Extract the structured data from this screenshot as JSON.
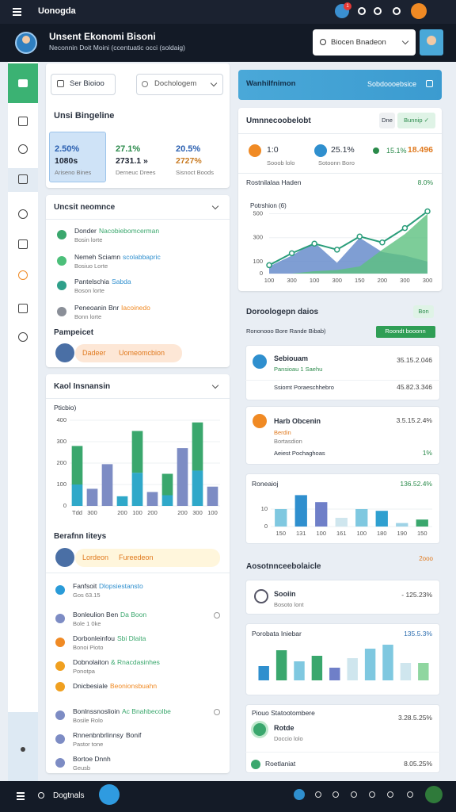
{
  "topbar": {
    "title": "Uonogda",
    "badge": "1"
  },
  "header": {
    "title": "Unsent Ekonomi Bisoni",
    "subtitle": "Neconnin Doit Moini (ccentuatic occi (soldaig)",
    "search": "Biocen Bnadeon"
  },
  "left": {
    "search": "Ser Bioioo",
    "dropdown": "Dochologem",
    "summary": {
      "title": "Unsi Bingeline",
      "cards": [
        {
          "change": "2.50%",
          "value": "1080s",
          "note": "Ariseno Bines"
        },
        {
          "change": "27.1%",
          "value": "2731.1 »",
          "note": "Derneuc Drees"
        },
        {
          "change": "20.5%",
          "value": "2727%",
          "note": "Sisnoct Boods"
        }
      ]
    },
    "activity": {
      "title": "Uncsit neomnce",
      "items": [
        {
          "title": "Donder",
          "accent": "Nacobiebomcerman",
          "sub": "Bosin lorte",
          "color": "#3aa76d",
          "accent_color": "#3aa76d"
        },
        {
          "title": "Nemeh Sciamn",
          "accent": "scolabbapric",
          "sub": "Bosiuo Lorte",
          "color": "#4cbf7a",
          "accent_color": "#2f8fce"
        },
        {
          "title": "Pantelschia",
          "accent": "Sabda",
          "sub": "Boson lorte",
          "color": "#2fa08a",
          "accent_color": "#2f8fce"
        },
        {
          "title": "Peneoanin Bnr",
          "accent": "Iacoinedo",
          "sub": "Bonn lorte",
          "color": "#8a8f98",
          "accent_color": "#f08a24"
        }
      ],
      "section": "Pampeicet",
      "profile": {
        "name": "Dadeer",
        "tag": "Uomeomcbion"
      }
    },
    "insights": {
      "title": "Kaol Insnansin",
      "chart": {
        "type": "bar",
        "ylabel": "Pticbio)",
        "categories": [
          "Tdd",
          "300",
          null,
          "200",
          "100",
          "200",
          null,
          "200",
          "300",
          "100"
        ],
        "series": [
          {
            "color": "#2fa8c9",
            "values": [
              100,
              null,
              null,
              45,
              155,
              null,
              50,
              null,
              165,
              null
            ]
          },
          {
            "color": "#3aa76d",
            "values": [
              180,
              null,
              null,
              null,
              195,
              null,
              100,
              null,
              225,
              null
            ]
          },
          {
            "color": "#7d8cc4",
            "values": [
              null,
              80,
              195,
              null,
              null,
              65,
              null,
              270,
              null,
              90
            ]
          }
        ],
        "ylim": [
          0,
          400
        ],
        "yticks": [
          0,
          100,
          200,
          300,
          400
        ]
      },
      "section": "Berafnn Iiteys",
      "profile": {
        "name": "Lordeon",
        "tag": "Fureedeon"
      },
      "items": [
        {
          "title": "Fanfsoit",
          "accent": "Dlopsiestansto",
          "sub": "Gos 63.15",
          "color": "#2a9bd8",
          "accent_color": "#2f8fce"
        },
        {
          "title": "Bonleulion Ben",
          "accent": "Da Boon",
          "sub": "Bole 1 0ke",
          "color": "#7d8cc4",
          "accent_color": "#3aa76d"
        },
        {
          "title": "Dorbonleinfou",
          "accent": "Sbi Dlaita",
          "sub": "Bonoi Pioto",
          "color": "#f08a24",
          "accent_color": "#3aa76d"
        },
        {
          "title": "Dobnolaiton",
          "accent": "& Rnacdasinhes",
          "sub": "Ponotpa",
          "color": "#f0a020",
          "accent_color": "#3aa76d"
        },
        {
          "title": "Dnicbesiale",
          "accent": "Beonionsbuahn",
          "color": "#f0a020",
          "accent_color": "#f08a24"
        },
        {
          "title": "Bonlnssnoslioin",
          "accent": "Ac Bnahbecolbe",
          "sub": "Bosile Rolo",
          "color": "#7d8cc4",
          "accent_color": "#3aa76d"
        },
        {
          "title": "Rnnenbnbrlinnsy",
          "accent": "Bonif",
          "sub": "Pastor tone",
          "color": "#7d8cc4",
          "accent_color": "#2b3340"
        },
        {
          "title": "Bortoe Dnnh",
          "sub": "Geusb",
          "color": "#7d8cc4",
          "accent_color": "#2b3340"
        }
      ]
    }
  },
  "right": {
    "banner": {
      "title": "Wanhilfnimon",
      "action": "Sobdoooebsice"
    },
    "overview": {
      "title": "Umnnecoobelobt",
      "buttons": [
        "Dne",
        "Bunnip ✓"
      ],
      "metrics": [
        {
          "value": "1:0",
          "label": "Sooob lolo"
        },
        {
          "value": "25.1%",
          "label": "Sotoonn Boro"
        },
        {
          "value": "15.1%"
        },
        {
          "value": "18.496"
        }
      ],
      "subtitle": "Rostnilalaa Haden",
      "change": "8.0%",
      "chart": {
        "type": "area",
        "ylabel": "Potrshion (6)",
        "categories": [
          "100",
          "300",
          "100",
          "300",
          "150",
          "200",
          "300",
          "300"
        ],
        "series": [
          {
            "type": "area",
            "color": "#5f86c8",
            "values": [
              60,
              150,
              260,
              90,
              300,
              180,
              150,
              100
            ]
          },
          {
            "type": "area",
            "color": "#5cc07f",
            "values": [
              0,
              0,
              20,
              30,
              60,
              200,
              330,
              500
            ]
          },
          {
            "type": "line",
            "color": "#2a9d7a",
            "values": [
              70,
              170,
              250,
              200,
              310,
              260,
              380,
              520
            ]
          }
        ],
        "ylim": [
          0,
          550
        ],
        "yticks": [
          0,
          100,
          300,
          500
        ]
      }
    },
    "details": {
      "title": "Doroologepn daios",
      "badge": "Bon",
      "filter": "Rononooo Bore Rande Bibab)",
      "filter_badge": "Roondt booonn",
      "cards": [
        {
          "title": "Sebiouam",
          "tag": "Pansioau 1 Saehu",
          "value": "35.15.2.046",
          "row": "Ssiomt Poraeschhebro",
          "row_value": "45.82.3.346"
        },
        {
          "title": "Harb Obcenin",
          "tag": "Berdin",
          "note": "Bortasdion",
          "value": "3.5.15.2.4%",
          "row": "Aeiest Pochaghoas",
          "row_value": "1%"
        }
      ]
    },
    "revenue": {
      "title": "Roneaioj",
      "value": "136.52.4%",
      "chart": {
        "type": "bar",
        "categories": [
          "150",
          "131",
          "100",
          "161",
          "100",
          "180",
          "190",
          "150"
        ],
        "values": [
          10,
          18,
          14,
          5,
          10,
          9,
          2,
          4
        ],
        "colors": [
          "#7fc8e0",
          "#2f8fce",
          "#6f7fc8",
          "#cfe6ee",
          "#7fc8e0",
          "#2fa0d0",
          "#9fd3e6",
          "#3aa76d"
        ],
        "ylim": [
          0,
          20
        ],
        "yticks": [
          0,
          10
        ]
      }
    },
    "accounts": {
      "title": "Aosotnnceebolaicle",
      "action": "2ooo",
      "item": {
        "title": "Sooiin",
        "sub": "Bosoto lont",
        "value": "- 125.23%"
      }
    },
    "distribution": {
      "title": "Porobata Iniebar",
      "value": "135.5.3%",
      "chart": {
        "type": "bar",
        "values": [
          18,
          38,
          24,
          31,
          16,
          28,
          40,
          45,
          22,
          22
        ],
        "colors": [
          "#2f8fce",
          "#3aa76d",
          "#7fc8e0",
          "#3aa76d",
          "#6f7fc8",
          "#cfe6ee",
          "#7fc8e0",
          "#7fc8e0",
          "#cfe6ee",
          "#8fd6a0"
        ]
      }
    },
    "status": {
      "title": "Piouo Statootombere",
      "value": "3.28.5.25%",
      "item": {
        "title": "Rotde",
        "sub": "Doccio lolo"
      },
      "footer": "Roetlaniat",
      "footer_value": "8.05.25%"
    }
  },
  "bottombar": {
    "label": "Dogtnals"
  }
}
